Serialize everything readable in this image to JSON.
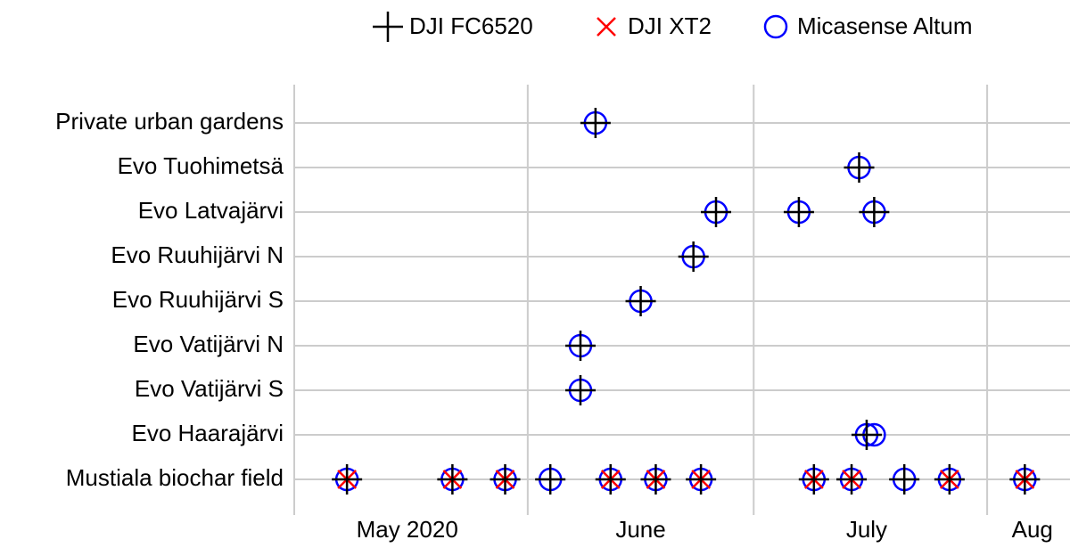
{
  "chart_data": {
    "type": "scatter",
    "categories": [
      "Private urban gardens",
      "Evo Tuohimetsä",
      "Evo Latvajärvi",
      "Evo Ruuhijärvi N",
      "Evo Ruuhijärvi S",
      "Evo Vatijärvi N",
      "Evo Vatijärvi S",
      "Evo Haarajärvi",
      "Mustiala biochar field"
    ],
    "xlim": [
      "2020-05-01",
      "2020-08-12"
    ],
    "xticks": [
      {
        "value": "2020-05-16",
        "label": "May 2020"
      },
      {
        "value": "2020-06-16",
        "label": "June"
      },
      {
        "value": "2020-07-16",
        "label": "July"
      },
      {
        "value": "2020-08-07",
        "label": "Aug"
      }
    ],
    "x_grid": [
      "2020-05-01",
      "2020-06-01",
      "2020-07-01",
      "2020-08-01"
    ],
    "grid": true,
    "legend": "top",
    "series": [
      {
        "name": "DJI FC6520",
        "color": "#000000",
        "marker": "plus",
        "x": [
          "2020-06-10",
          "2020-07-15",
          "2020-06-26",
          "2020-07-07",
          "2020-07-17",
          "2020-06-23",
          "2020-06-16",
          "2020-06-08",
          "2020-06-08",
          "2020-07-16",
          "2020-05-08",
          "2020-05-22",
          "2020-05-29",
          "2020-06-04",
          "2020-06-12",
          "2020-06-18",
          "2020-06-24",
          "2020-07-09",
          "2020-07-14",
          "2020-07-21",
          "2020-07-27",
          "2020-08-06"
        ],
        "y": [
          "Private urban gardens",
          "Evo Tuohimetsä",
          "Evo Latvajärvi",
          "Evo Latvajärvi",
          "Evo Latvajärvi",
          "Evo Ruuhijärvi N",
          "Evo Ruuhijärvi S",
          "Evo Vatijärvi N",
          "Evo Vatijärvi S",
          "Evo Haarajärvi",
          "Mustiala biochar field",
          "Mustiala biochar field",
          "Mustiala biochar field",
          "Mustiala biochar field",
          "Mustiala biochar field",
          "Mustiala biochar field",
          "Mustiala biochar field",
          "Mustiala biochar field",
          "Mustiala biochar field",
          "Mustiala biochar field",
          "Mustiala biochar field",
          "Mustiala biochar field"
        ]
      },
      {
        "name": "DJI XT2",
        "color": "#ff0000",
        "marker": "x",
        "x": [
          "2020-05-08",
          "2020-05-22",
          "2020-05-29",
          "2020-06-12",
          "2020-06-18",
          "2020-06-24",
          "2020-07-09",
          "2020-07-14",
          "2020-07-27",
          "2020-08-06"
        ],
        "y": [
          "Mustiala biochar field",
          "Mustiala biochar field",
          "Mustiala biochar field",
          "Mustiala biochar field",
          "Mustiala biochar field",
          "Mustiala biochar field",
          "Mustiala biochar field",
          "Mustiala biochar field",
          "Mustiala biochar field",
          "Mustiala biochar field"
        ]
      },
      {
        "name": "Micasense Altum",
        "color": "#0000ff",
        "marker": "circle",
        "x": [
          "2020-06-10",
          "2020-07-15",
          "2020-06-26",
          "2020-07-07",
          "2020-07-17",
          "2020-06-23",
          "2020-06-16",
          "2020-06-08",
          "2020-06-08",
          "2020-07-16",
          "2020-07-17",
          "2020-05-08",
          "2020-05-22",
          "2020-05-29",
          "2020-06-04",
          "2020-06-12",
          "2020-06-18",
          "2020-06-24",
          "2020-07-09",
          "2020-07-14",
          "2020-07-21",
          "2020-07-27",
          "2020-08-06"
        ],
        "y": [
          "Private urban gardens",
          "Evo Tuohimetsä",
          "Evo Latvajärvi",
          "Evo Latvajärvi",
          "Evo Latvajärvi",
          "Evo Ruuhijärvi N",
          "Evo Ruuhijärvi S",
          "Evo Vatijärvi N",
          "Evo Vatijärvi S",
          "Evo Haarajärvi",
          "Evo Haarajärvi",
          "Mustiala biochar field",
          "Mustiala biochar field",
          "Mustiala biochar field",
          "Mustiala biochar field",
          "Mustiala biochar field",
          "Mustiala biochar field",
          "Mustiala biochar field",
          "Mustiala biochar field",
          "Mustiala biochar field",
          "Mustiala biochar field",
          "Mustiala biochar field",
          "Mustiala biochar field"
        ]
      }
    ]
  }
}
